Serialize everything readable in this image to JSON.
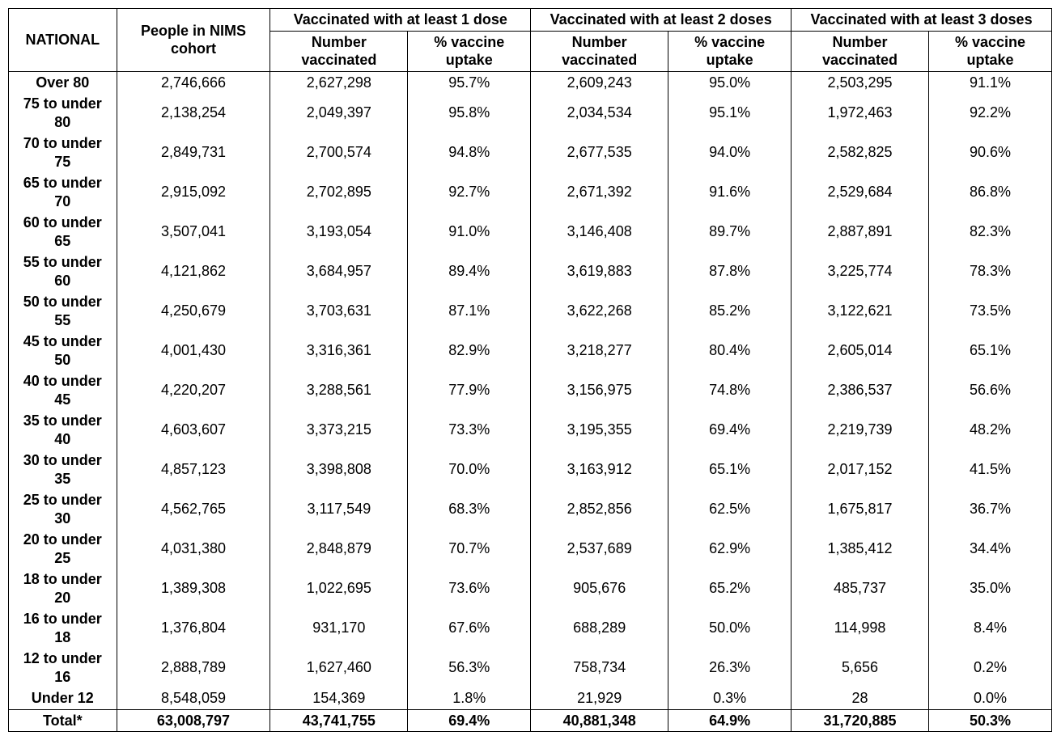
{
  "type": "table",
  "colors": {
    "background": "#ffffff",
    "border": "#000000",
    "text": "#000000"
  },
  "typography": {
    "font_family": "Arial",
    "font_size_pt": 14,
    "header_weight": "bold",
    "row_label_weight": "bold",
    "total_weight": "bold"
  },
  "headers": {
    "national": "NATIONAL",
    "cohort": "People in NIMS cohort",
    "group1": "Vaccinated with at least 1 dose",
    "group2": "Vaccinated with at least 2 doses",
    "group3": "Vaccinated with at least 3 doses",
    "sub_num": "Number vaccinated",
    "sub_pct": "% vaccine uptake"
  },
  "rows": [
    {
      "label": "Over 80",
      "cohort": "2,746,666",
      "d1n": "2,627,298",
      "d1p": "95.7%",
      "d2n": "2,609,243",
      "d2p": "95.0%",
      "d3n": "2,503,295",
      "d3p": "91.1%"
    },
    {
      "label": "75 to under 80",
      "cohort": "2,138,254",
      "d1n": "2,049,397",
      "d1p": "95.8%",
      "d2n": "2,034,534",
      "d2p": "95.1%",
      "d3n": "1,972,463",
      "d3p": "92.2%"
    },
    {
      "label": "70 to under 75",
      "cohort": "2,849,731",
      "d1n": "2,700,574",
      "d1p": "94.8%",
      "d2n": "2,677,535",
      "d2p": "94.0%",
      "d3n": "2,582,825",
      "d3p": "90.6%"
    },
    {
      "label": "65 to under 70",
      "cohort": "2,915,092",
      "d1n": "2,702,895",
      "d1p": "92.7%",
      "d2n": "2,671,392",
      "d2p": "91.6%",
      "d3n": "2,529,684",
      "d3p": "86.8%"
    },
    {
      "label": "60 to under 65",
      "cohort": "3,507,041",
      "d1n": "3,193,054",
      "d1p": "91.0%",
      "d2n": "3,146,408",
      "d2p": "89.7%",
      "d3n": "2,887,891",
      "d3p": "82.3%"
    },
    {
      "label": "55 to under 60",
      "cohort": "4,121,862",
      "d1n": "3,684,957",
      "d1p": "89.4%",
      "d2n": "3,619,883",
      "d2p": "87.8%",
      "d3n": "3,225,774",
      "d3p": "78.3%"
    },
    {
      "label": "50 to under 55",
      "cohort": "4,250,679",
      "d1n": "3,703,631",
      "d1p": "87.1%",
      "d2n": "3,622,268",
      "d2p": "85.2%",
      "d3n": "3,122,621",
      "d3p": "73.5%"
    },
    {
      "label": "45 to under 50",
      "cohort": "4,001,430",
      "d1n": "3,316,361",
      "d1p": "82.9%",
      "d2n": "3,218,277",
      "d2p": "80.4%",
      "d3n": "2,605,014",
      "d3p": "65.1%"
    },
    {
      "label": "40 to under 45",
      "cohort": "4,220,207",
      "d1n": "3,288,561",
      "d1p": "77.9%",
      "d2n": "3,156,975",
      "d2p": "74.8%",
      "d3n": "2,386,537",
      "d3p": "56.6%"
    },
    {
      "label": "35 to under 40",
      "cohort": "4,603,607",
      "d1n": "3,373,215",
      "d1p": "73.3%",
      "d2n": "3,195,355",
      "d2p": "69.4%",
      "d3n": "2,219,739",
      "d3p": "48.2%"
    },
    {
      "label": "30 to under 35",
      "cohort": "4,857,123",
      "d1n": "3,398,808",
      "d1p": "70.0%",
      "d2n": "3,163,912",
      "d2p": "65.1%",
      "d3n": "2,017,152",
      "d3p": "41.5%"
    },
    {
      "label": "25 to under 30",
      "cohort": "4,562,765",
      "d1n": "3,117,549",
      "d1p": "68.3%",
      "d2n": "2,852,856",
      "d2p": "62.5%",
      "d3n": "1,675,817",
      "d3p": "36.7%"
    },
    {
      "label": "20 to under 25",
      "cohort": "4,031,380",
      "d1n": "2,848,879",
      "d1p": "70.7%",
      "d2n": "2,537,689",
      "d2p": "62.9%",
      "d3n": "1,385,412",
      "d3p": "34.4%"
    },
    {
      "label": "18 to under 20",
      "cohort": "1,389,308",
      "d1n": "1,022,695",
      "d1p": "73.6%",
      "d2n": "905,676",
      "d2p": "65.2%",
      "d3n": "485,737",
      "d3p": "35.0%"
    },
    {
      "label": "16 to under 18",
      "cohort": "1,376,804",
      "d1n": "931,170",
      "d1p": "67.6%",
      "d2n": "688,289",
      "d2p": "50.0%",
      "d3n": "114,998",
      "d3p": "8.4%"
    },
    {
      "label": "12 to under 16",
      "cohort": "2,888,789",
      "d1n": "1,627,460",
      "d1p": "56.3%",
      "d2n": "758,734",
      "d2p": "26.3%",
      "d3n": "5,656",
      "d3p": "0.2%"
    },
    {
      "label": "Under 12",
      "cohort": "8,548,059",
      "d1n": "154,369",
      "d1p": "1.8%",
      "d2n": "21,929",
      "d2p": "0.3%",
      "d3n": "28",
      "d3p": "0.0%"
    }
  ],
  "total": {
    "label": "Total*",
    "cohort": "63,008,797",
    "d1n": "43,741,755",
    "d1p": "69.4%",
    "d2n": "40,881,348",
    "d2p": "64.9%",
    "d3n": "31,720,885",
    "d3p": "50.3%"
  },
  "column_widths_pct": [
    15,
    11,
    12,
    9,
    12,
    9,
    12,
    9
  ]
}
